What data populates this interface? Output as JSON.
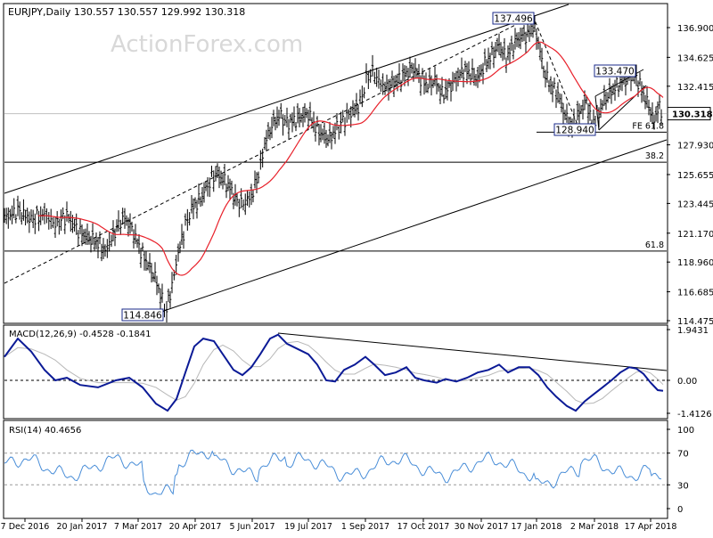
{
  "chart_title": "EURJPY,Daily  130.557 130.557 129.992 130.318",
  "watermark": "ActionForex.com",
  "colors": {
    "price": "#000000",
    "ma": "#e8202a",
    "macd": "#0b1a96",
    "signal": "#b8b8b8",
    "rsi": "#4a8ed8",
    "lines": "#000000",
    "price_box_bg": "#ffffff"
  },
  "chart_data": [
    {
      "type": "ohlc",
      "panel": "price",
      "y_ticks": [
        "136.900",
        "134.625",
        "132.415",
        "130.318",
        "127.930",
        "125.655",
        "123.445",
        "121.170",
        "118.960",
        "116.685",
        "114.475"
      ],
      "ylim": [
        114.475,
        136.9
      ],
      "current_price": "130.318",
      "x_ticks": [
        "7 Dec 2016",
        "20 Jan 2017",
        "7 Mar 2017",
        "20 Apr 2017",
        "5 Jun 2017",
        "19 Jul 2017",
        "1 Sep 2017",
        "17 Oct 2017",
        "30 Nov 2017",
        "17 Jan 2018",
        "2 Mar 2018",
        "17 Apr 2018"
      ],
      "key_levels": [
        {
          "label": "FE 61.8",
          "value": 128.9
        },
        {
          "label": "38.2",
          "value": 126.6
        },
        {
          "label": "61.8",
          "value": 119.8
        }
      ],
      "annotations": [
        {
          "label": "137.496",
          "value": 137.496
        },
        {
          "label": "133.470",
          "value": 133.47
        },
        {
          "label": "128.940",
          "value": 128.94
        },
        {
          "label": "114.846",
          "value": 114.846
        }
      ],
      "close_path": [
        [
          "7 Dec 2016",
          122.0
        ],
        [
          "20 Jan 2017",
          121.5
        ],
        [
          "7 Mar 2017",
          121.0
        ],
        [
          "15 Apr 2017",
          115.0
        ],
        [
          "20 Apr 2017",
          118.0
        ],
        [
          "5 Jun 2017",
          124.0
        ],
        [
          "19 Jul 2017",
          130.5
        ],
        [
          "1 Sep 2017",
          129.5
        ],
        [
          "17 Oct 2017",
          133.0
        ],
        [
          "30 Nov 2017",
          133.0
        ],
        [
          "17 Jan 2018",
          136.5
        ],
        [
          "2 Mar 2018",
          129.0
        ],
        [
          "17 Apr 2018",
          133.0
        ],
        [
          "end",
          130.318
        ]
      ]
    },
    {
      "type": "line",
      "panel": "macd",
      "name": "MACD(12,26,9) -0.4528 -0.1841",
      "y_ticks": [
        "1.9431",
        "0.00",
        "-1.4126"
      ],
      "values_label": [
        "-0.4528",
        "-0.1841"
      ]
    },
    {
      "type": "line",
      "panel": "rsi",
      "name": "RSI(14) 40.4656",
      "y_ticks": [
        "100",
        "70",
        "30",
        "0"
      ],
      "ylim": [
        0,
        100
      ]
    }
  ]
}
